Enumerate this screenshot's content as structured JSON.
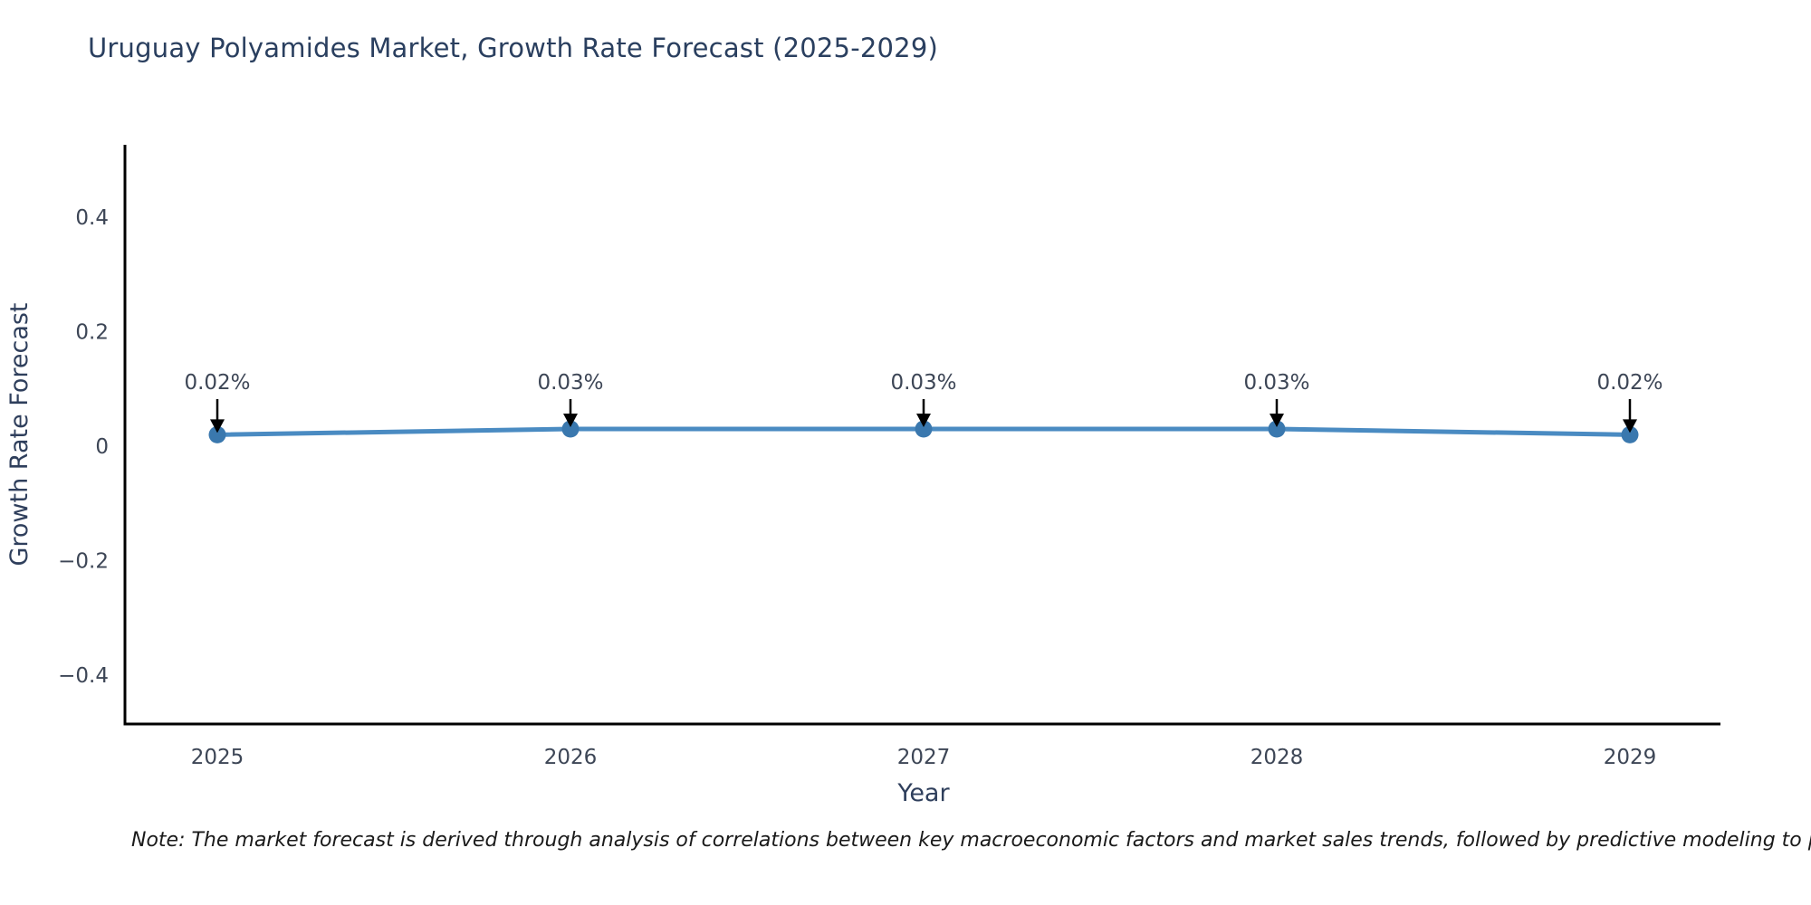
{
  "chart_data": {
    "type": "line",
    "title": "Uruguay Polyamides Market, Growth Rate Forecast (2025-2029)",
    "xlabel": "Year",
    "ylabel": "Growth Rate Forecast",
    "categories": [
      "2025",
      "2026",
      "2027",
      "2028",
      "2029"
    ],
    "values": [
      0.02,
      0.03,
      0.03,
      0.03,
      0.02
    ],
    "point_labels": [
      "0.02%",
      "0.03%",
      "0.03%",
      "0.03%",
      "0.02%"
    ],
    "yticks": [
      {
        "value": 0.4,
        "label": "0.4"
      },
      {
        "value": 0.2,
        "label": "0.2"
      },
      {
        "value": 0,
        "label": "0"
      },
      {
        "value": -0.2,
        "label": "−0.2"
      },
      {
        "value": -0.4,
        "label": "−0.4"
      }
    ],
    "ylim": [
      -0.49,
      0.53
    ],
    "grid": false,
    "legend_position": "none",
    "colors": {
      "line": "#4a8bc2",
      "marker": "#3a78ae",
      "spine": "#000000",
      "title_text": "#2a3f5f",
      "tick_text": "#3d4656",
      "axis_title_text": "#2f3f5c",
      "annotation_text": "#3d4656",
      "arrow": "#000000",
      "background": "#ffffff"
    }
  },
  "note": {
    "text": "Note: The market forecast is derived through analysis of correlations between key macroeconomic factors and market sales trends, followed by predictive modeling to project future sa"
  }
}
